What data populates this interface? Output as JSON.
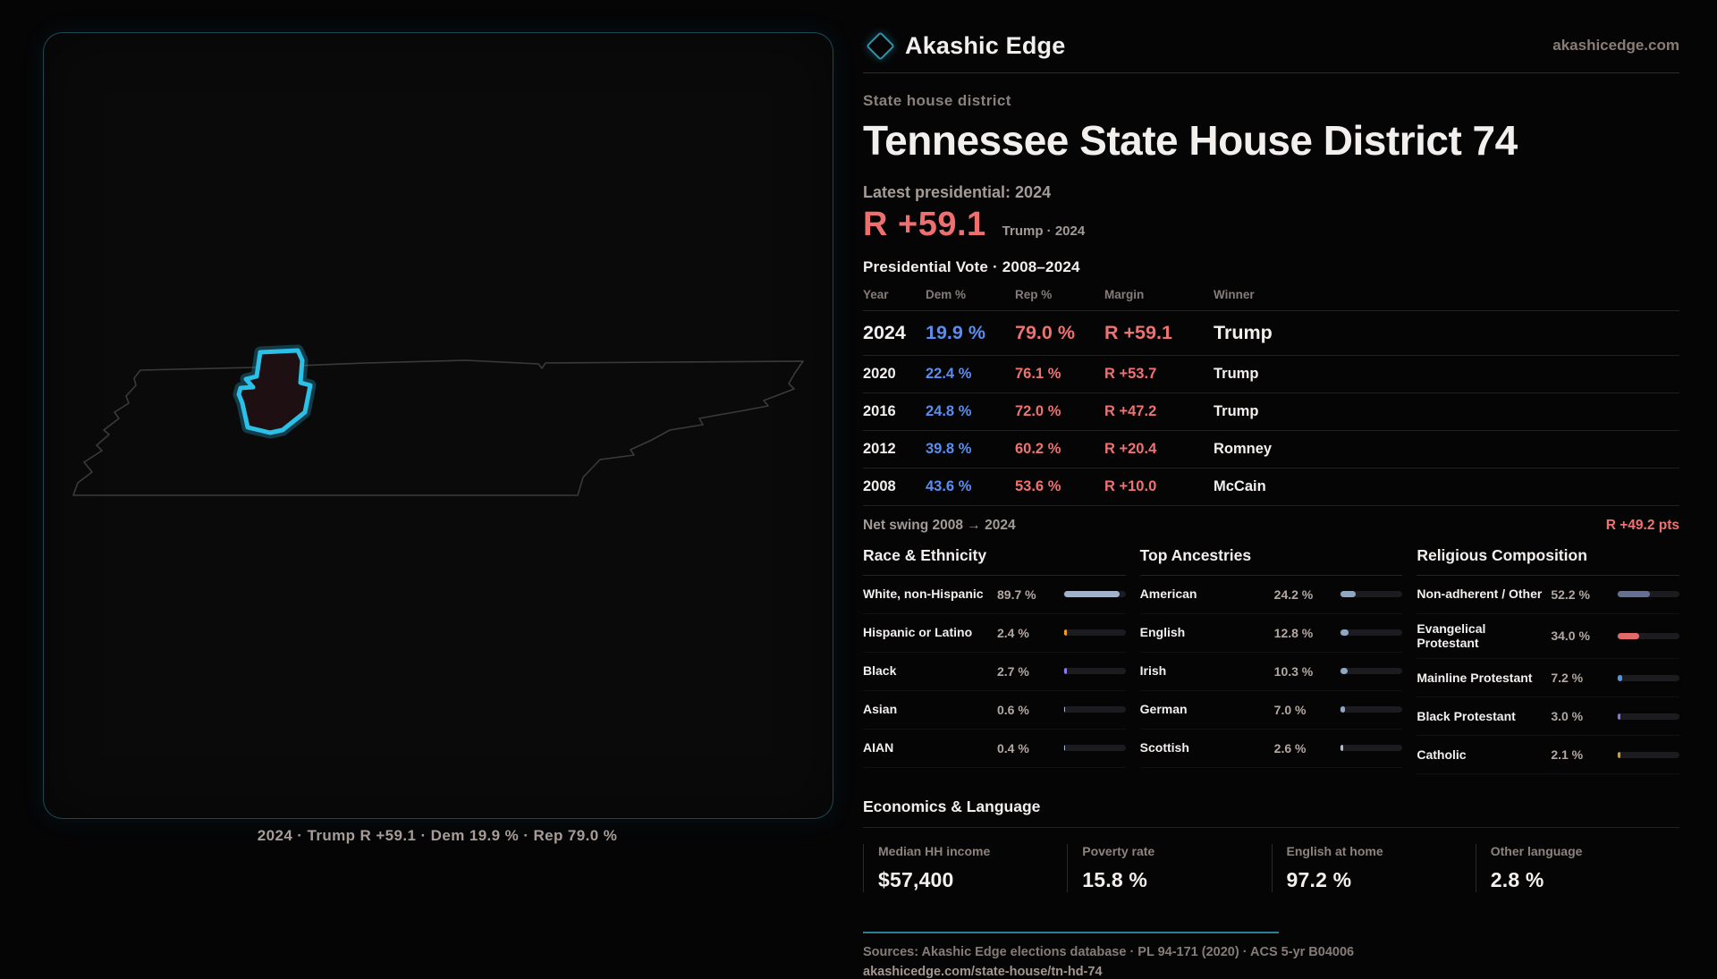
{
  "brand": {
    "logo": "diamond-icon",
    "name": "Akashic Edge",
    "domain": "akashicedge.com"
  },
  "map": {
    "region": "Tennessee",
    "caption": "2024 · Trump R +59.1 · Dem 19.9 % · Rep 79.0 %"
  },
  "header": {
    "kicker": "State house district",
    "title": "Tennessee State House District 74",
    "latest": "Latest presidential: 2024",
    "margin_big": "R +59.1",
    "margin_sub": "Trump · 2024"
  },
  "vote_table": {
    "title": "Presidential Vote · 2008–2024",
    "columns": [
      "Year",
      "Dem %",
      "Rep %",
      "Margin",
      "Winner"
    ],
    "rows": [
      {
        "year": "2024",
        "dem": "19.9 %",
        "rep": "79.0 %",
        "margin": "R +59.1",
        "winner": "Trump",
        "highlight": true
      },
      {
        "year": "2020",
        "dem": "22.4 %",
        "rep": "76.1 %",
        "margin": "R +53.7",
        "winner": "Trump",
        "highlight": false
      },
      {
        "year": "2016",
        "dem": "24.8 %",
        "rep": "72.0 %",
        "margin": "R +47.2",
        "winner": "Trump",
        "highlight": false
      },
      {
        "year": "2012",
        "dem": "39.8 %",
        "rep": "60.2 %",
        "margin": "R +20.4",
        "winner": "Romney",
        "highlight": false
      },
      {
        "year": "2008",
        "dem": "43.6 %",
        "rep": "53.6 %",
        "margin": "R +10.0",
        "winner": "McCain",
        "highlight": false
      }
    ],
    "net_swing_label": "Net swing 2008 → 2024",
    "net_swing_value": "R +49.2 pts"
  },
  "demographics": {
    "race": {
      "title": "Race & Ethnicity",
      "rows": [
        {
          "label": "White, non-Hispanic",
          "value": "89.7 %",
          "pct": 89.7,
          "color": "#9fb3cf"
        },
        {
          "label": "Hispanic or Latino",
          "value": "2.4 %",
          "pct": 2.4,
          "color": "#f09b1e"
        },
        {
          "label": "Black",
          "value": "2.7 %",
          "pct": 2.7,
          "color": "#9178e8"
        },
        {
          "label": "Asian",
          "value": "0.6 %",
          "pct": 0.6,
          "color": "#9fb3cf"
        },
        {
          "label": "AIAN",
          "value": "0.4 %",
          "pct": 0.4,
          "color": "#9fb3cf"
        }
      ]
    },
    "ancestries": {
      "title": "Top Ancestries",
      "rows": [
        {
          "label": "American",
          "value": "24.2 %",
          "pct": 24.2,
          "color": "#8fa6c4"
        },
        {
          "label": "English",
          "value": "12.8 %",
          "pct": 12.8,
          "color": "#8fa6c4"
        },
        {
          "label": "Irish",
          "value": "10.3 %",
          "pct": 10.3,
          "color": "#8fa6c4"
        },
        {
          "label": "German",
          "value": "7.0 %",
          "pct": 7.0,
          "color": "#8fa6c4"
        },
        {
          "label": "Scottish",
          "value": "2.6 %",
          "pct": 2.6,
          "color": "#aebdd0"
        }
      ]
    },
    "religion": {
      "title": "Religious Composition",
      "rows": [
        {
          "label": "Non-adherent / Other",
          "value": "52.2 %",
          "pct": 52.2,
          "color": "#667093"
        },
        {
          "label": "Evangelical Protestant",
          "value": "34.0 %",
          "pct": 34.0,
          "color": "#e06a6a"
        },
        {
          "label": "Mainline Protestant",
          "value": "7.2 %",
          "pct": 7.2,
          "color": "#4d96e8"
        },
        {
          "label": "Black Protestant",
          "value": "3.0 %",
          "pct": 3.0,
          "color": "#8a6fd8"
        },
        {
          "label": "Catholic",
          "value": "2.1 %",
          "pct": 2.1,
          "color": "#d4a017"
        }
      ]
    }
  },
  "economics": {
    "title": "Economics & Language",
    "stats": [
      {
        "label": "Median HH income",
        "value": "$57,400"
      },
      {
        "label": "Poverty rate",
        "value": "15.8 %"
      },
      {
        "label": "English at home",
        "value": "97.2 %"
      },
      {
        "label": "Other language",
        "value": "2.8 %"
      }
    ]
  },
  "footer": {
    "sources": "Sources: Akashic Edge elections database · PL 94-171 (2020) · ACS 5-yr B04006",
    "permalink": "akashicedge.com/state-house/tn-hd-74"
  },
  "colors": {
    "accent_cyan": "#2bc0e8",
    "dem_blue": "#5b8dee",
    "rep_red": "#ee7272",
    "teal_rule": "#2d7f96",
    "district_fill": "#1e1012"
  }
}
